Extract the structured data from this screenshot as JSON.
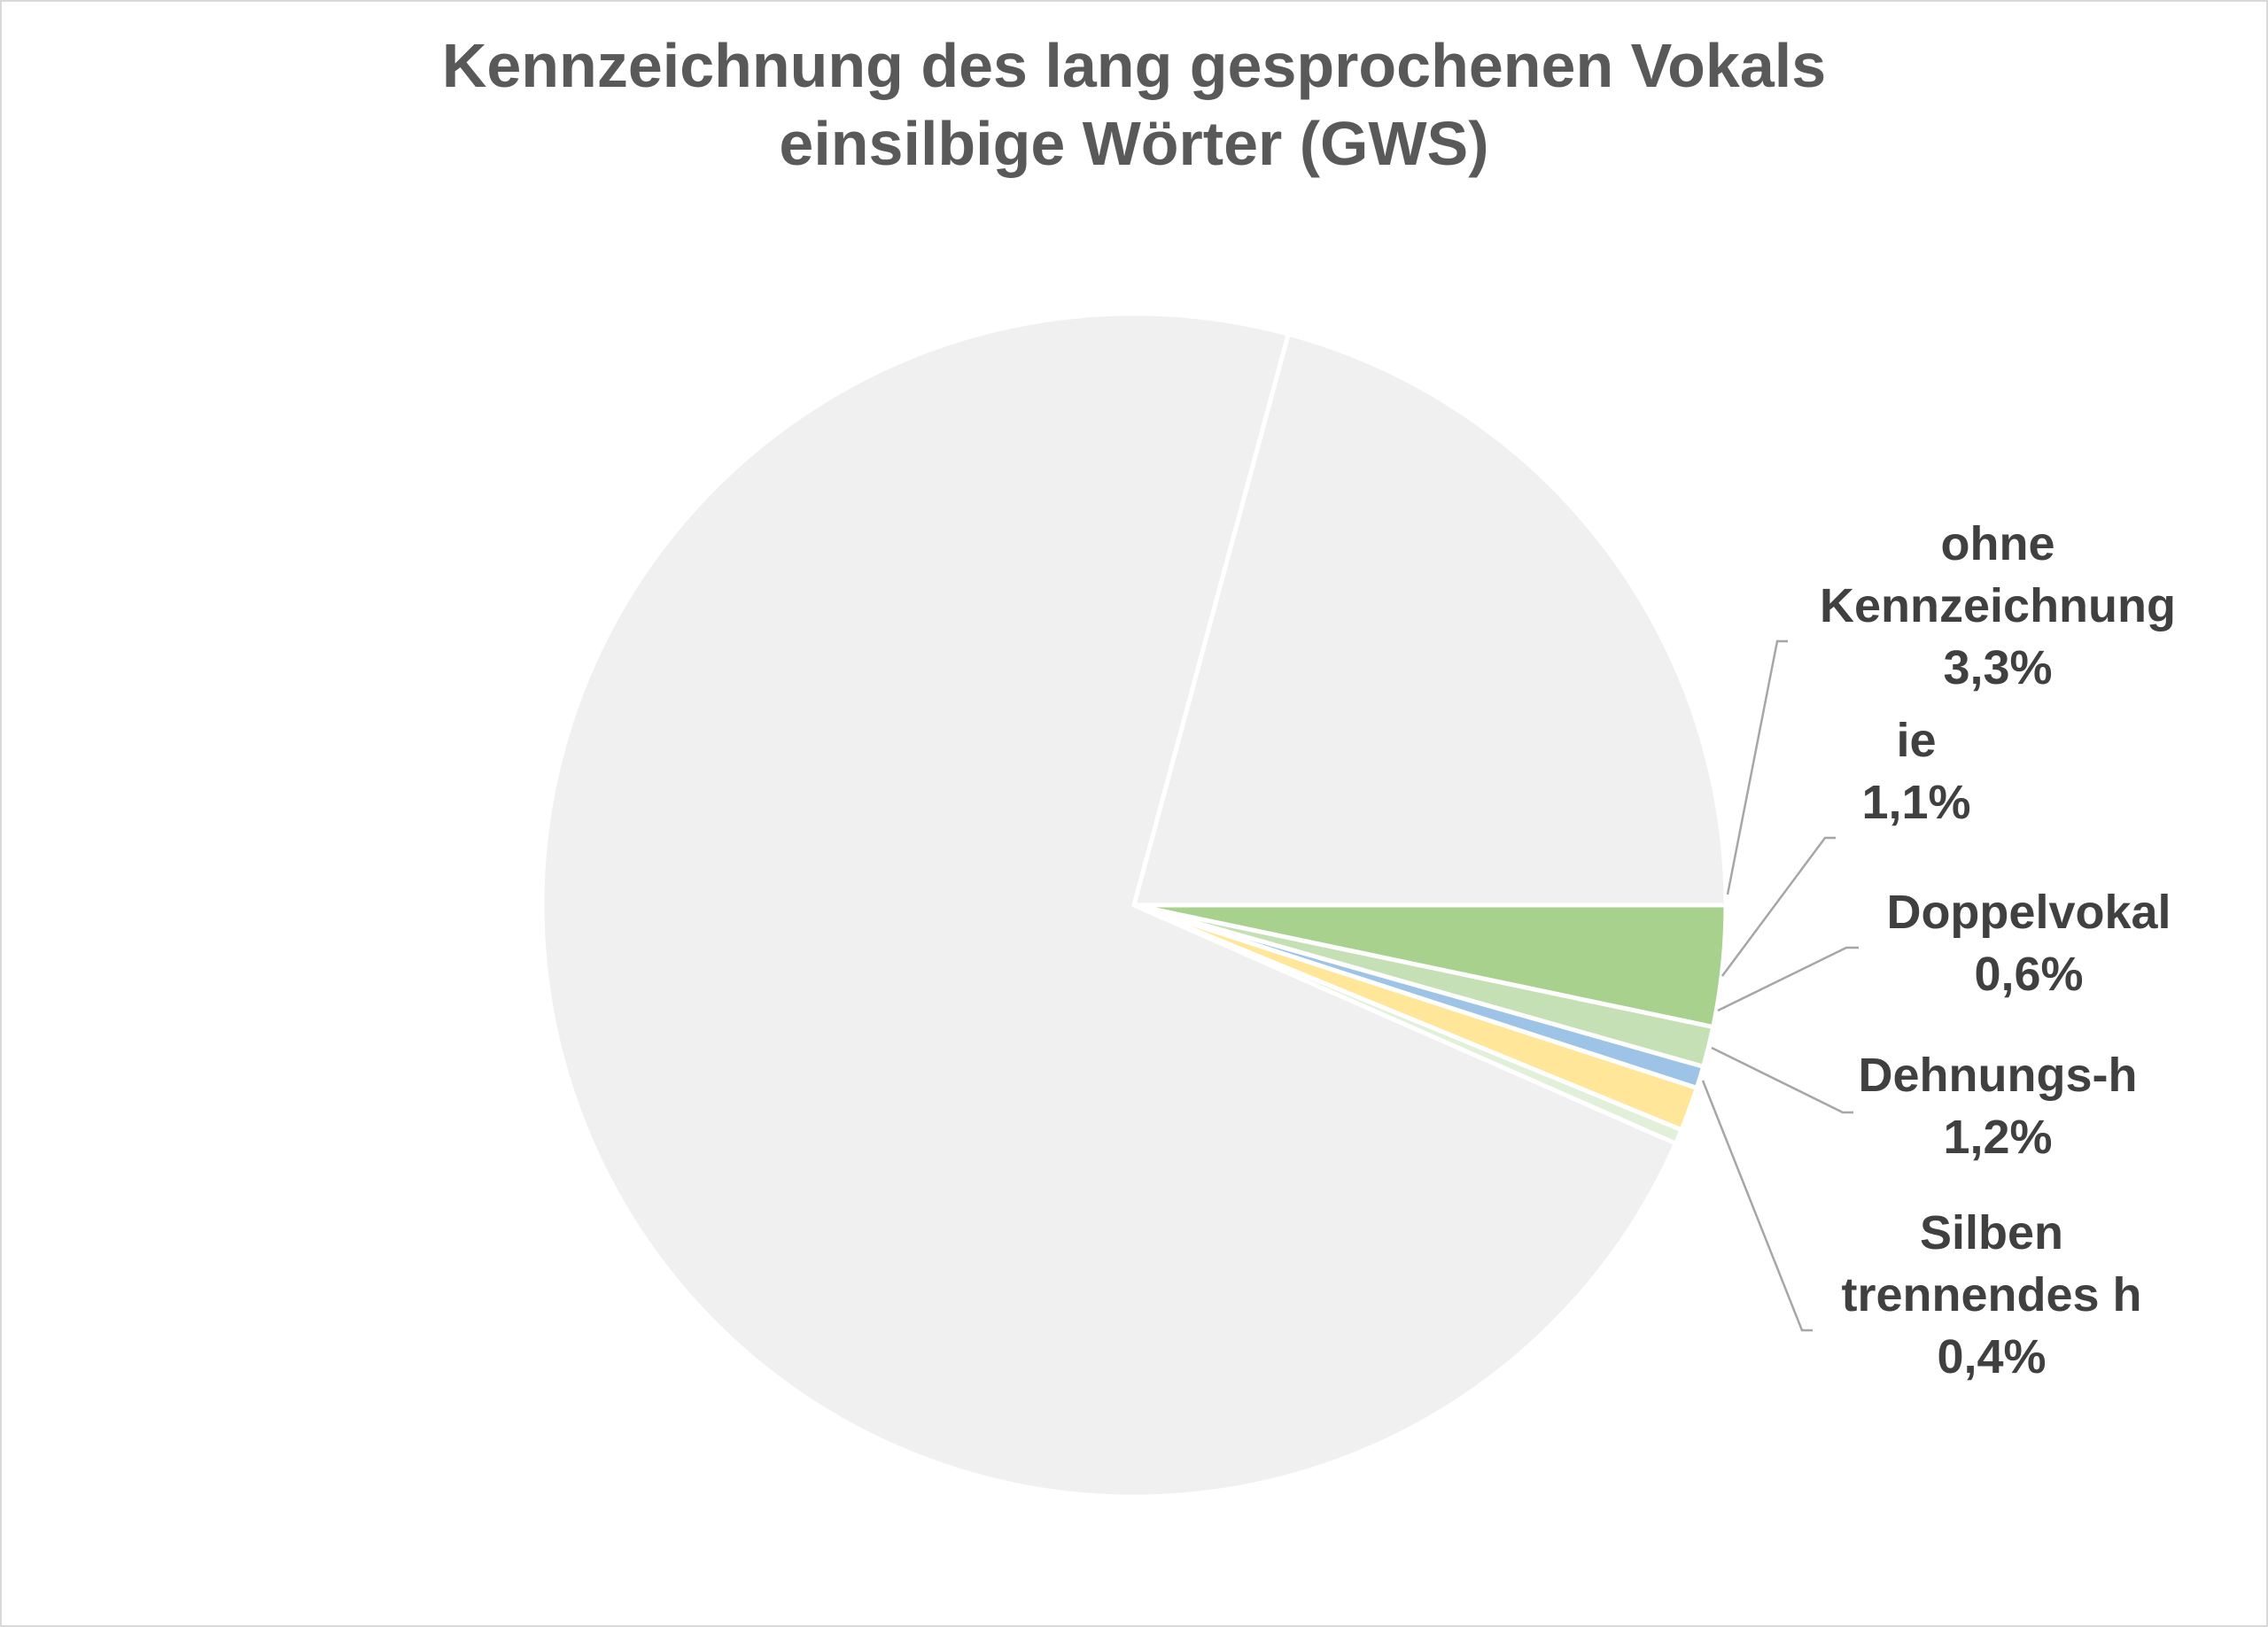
{
  "chart_data": {
    "type": "pie",
    "title_lines": [
      "Kennzeichnung des lang gesprochenen Vokals",
      "einsilbige Wörter (GWS)"
    ],
    "slices": [
      {
        "label_lines": [
          "ohne",
          "Kennzeichnung"
        ],
        "value_label": "3,3%",
        "value": 3.3,
        "color": "#a9d18e"
      },
      {
        "label_lines": [
          "ie"
        ],
        "value_label": "1,1%",
        "value": 1.1,
        "color": "#c5e0b4"
      },
      {
        "label_lines": [
          "Doppelvokal"
        ],
        "value_label": "0,6%",
        "value": 0.6,
        "color": "#9dc3e6"
      },
      {
        "label_lines": [
          "Dehnungs-h"
        ],
        "value_label": "1,2%",
        "value": 1.2,
        "color": "#ffe699"
      },
      {
        "label_lines": [
          "Silben",
          "trennendes h"
        ],
        "value_label": "0,4%",
        "value": 0.4,
        "color": "#e2f0d9"
      },
      {
        "label_lines": [],
        "value_label": "",
        "value": 72.6,
        "color": "#f0f0f0"
      },
      {
        "label_lines": [],
        "value_label": "",
        "value": 20.8,
        "color": "#f0f0f0"
      }
    ],
    "legend": "none",
    "leader_line_color": "#a6a6a6",
    "slice_border_color": "#ffffff"
  }
}
